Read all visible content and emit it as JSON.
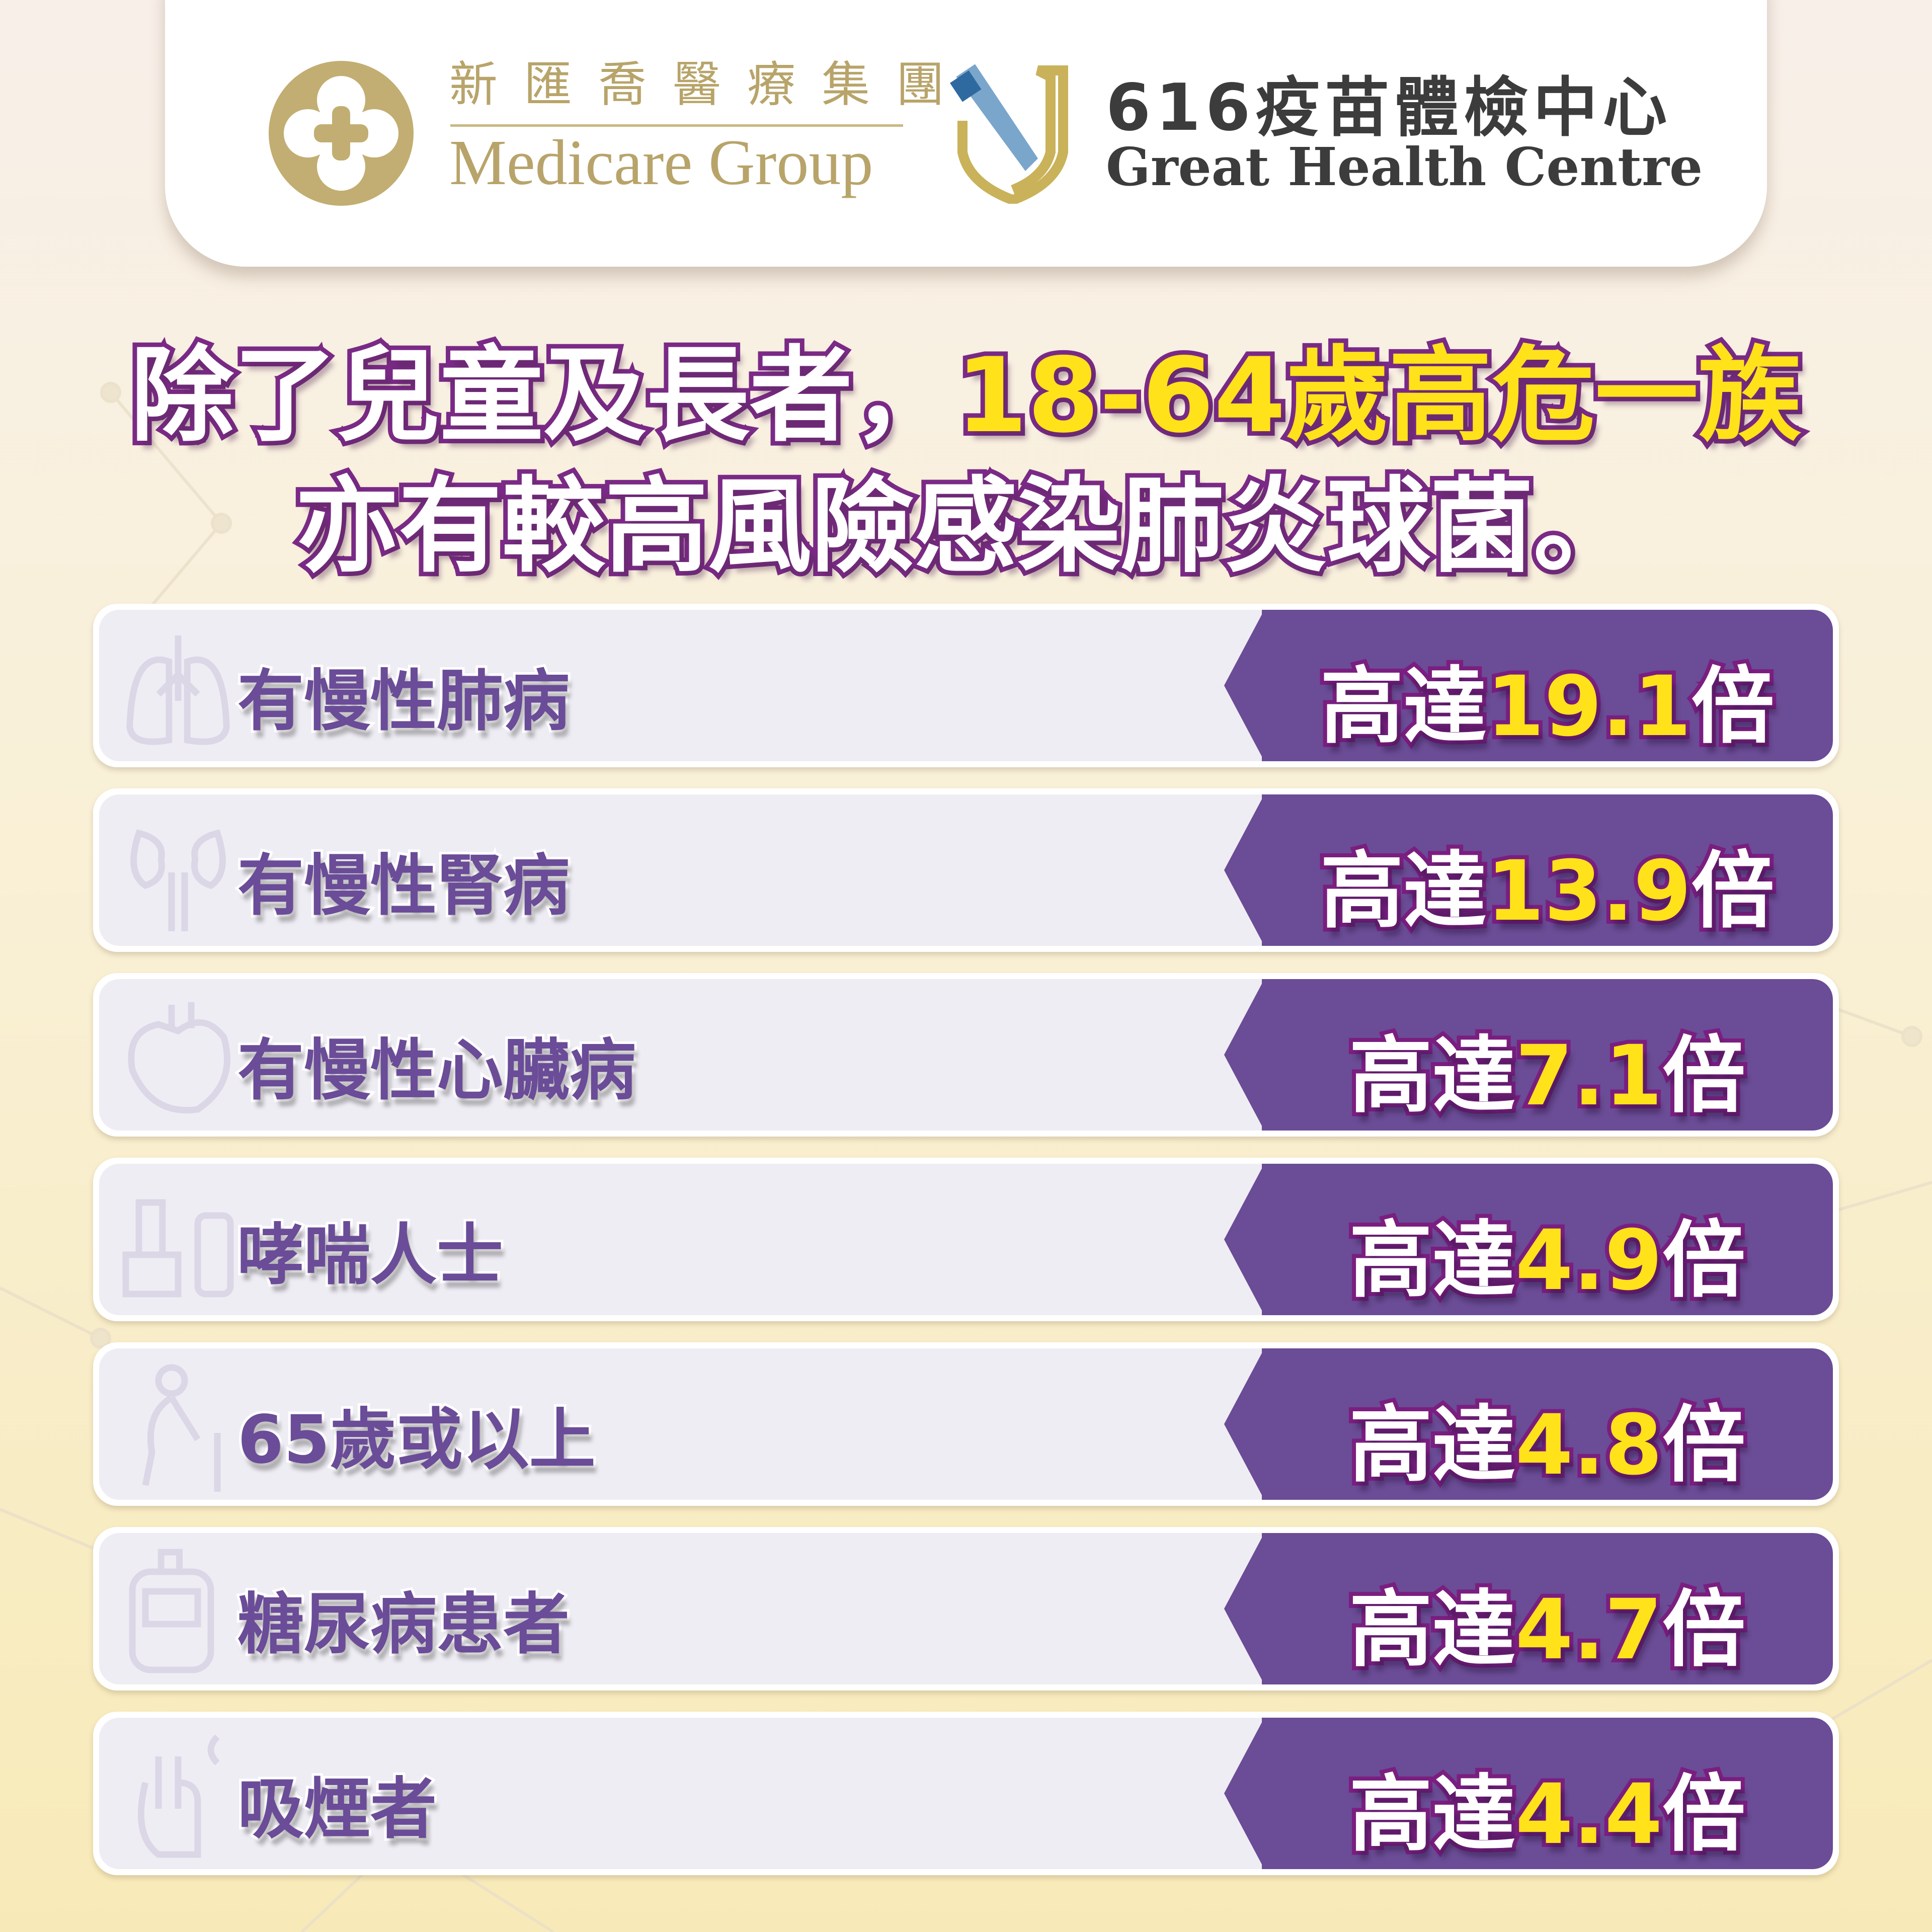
{
  "header": {
    "medicare": {
      "name_zh": "新匯喬醫療集團",
      "name_en": "Medicare Group",
      "color": "#b8a46a"
    },
    "great_health": {
      "name_zh": "616疫苗體檢中心",
      "name_en": "Great Health Centre",
      "color": "#3c3c3c"
    }
  },
  "headline": {
    "line1_a": "除了兒童及長者，",
    "line1_b": "18-64歲高危一族",
    "line2": "亦有較高風險感染肺炎球菌。"
  },
  "colors": {
    "purple": "#6b4c96",
    "yellow": "#ffe21a",
    "outline": "#7a2a86"
  },
  "rows": [
    {
      "icon": "lungs-icon",
      "label": "有慢性肺病",
      "prefix": "高達",
      "value": "19.1",
      "suffix": "倍"
    },
    {
      "icon": "kidney-icon",
      "label": "有慢性腎病",
      "prefix": "高達",
      "value": "13.9",
      "suffix": "倍"
    },
    {
      "icon": "heart-icon",
      "label": "有慢性心臟病",
      "prefix": "高達",
      "value": "7.1",
      "suffix": "倍"
    },
    {
      "icon": "inhaler-icon",
      "label": "哮喘人士",
      "prefix": "高達",
      "value": "4.9",
      "suffix": "倍"
    },
    {
      "icon": "elderly-icon",
      "label": "65歲或以上",
      "prefix": "高達",
      "value": "4.8",
      "suffix": "倍"
    },
    {
      "icon": "glucose-meter-icon",
      "label": "糖尿病患者",
      "prefix": "高達",
      "value": "4.7",
      "suffix": "倍"
    },
    {
      "icon": "cigarette-icon",
      "label": "吸煙者",
      "prefix": "高達",
      "value": "4.4",
      "suffix": "倍"
    }
  ]
}
